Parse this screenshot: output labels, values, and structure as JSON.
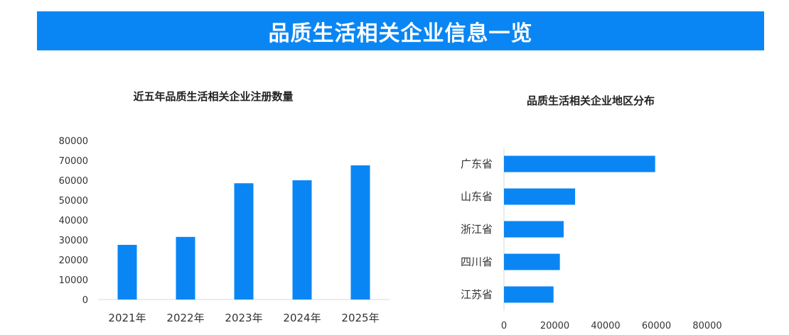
{
  "page_title": "品质生活相关企业信息一览",
  "colors": {
    "banner": "#0a86f4",
    "bar": "#0a86f4",
    "axis": "#d9d9d9"
  },
  "chart_data": [
    {
      "type": "bar",
      "title": "近五年品质生活相关企业注册数量",
      "categories": [
        "2021年",
        "2022年",
        "2023年",
        "2024年",
        "2025年"
      ],
      "values": [
        27500,
        31500,
        58500,
        60000,
        67500
      ],
      "ylim": [
        0,
        80000
      ],
      "yticks": [
        0,
        10000,
        20000,
        30000,
        40000,
        50000,
        60000,
        70000,
        80000
      ],
      "grid": false
    },
    {
      "type": "bar",
      "orientation": "horizontal",
      "title": "品质生活相关企业地区分布",
      "categories": [
        "广东省",
        "山东省",
        "浙江省",
        "四川省",
        "江苏省"
      ],
      "values": [
        59500,
        28000,
        23500,
        22000,
        19500
      ],
      "xlim": [
        0,
        80000
      ],
      "xticks": [
        0,
        20000,
        40000,
        60000,
        80000
      ],
      "grid": false
    }
  ]
}
